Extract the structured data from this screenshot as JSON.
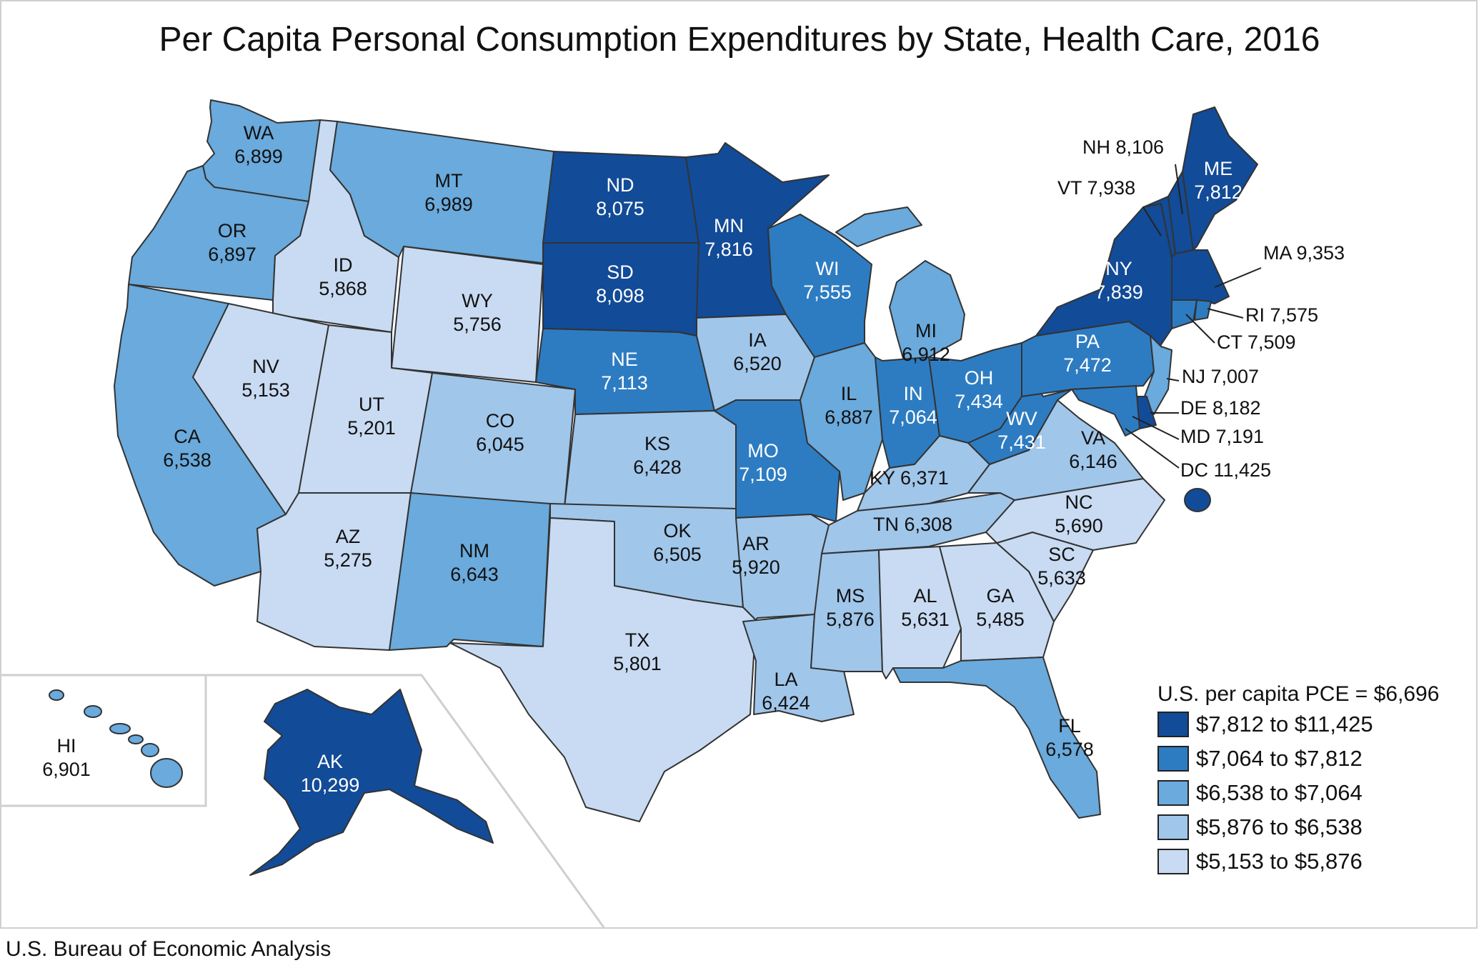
{
  "title": "Per Capita Personal Consumption Expenditures by State, Health Care, 2016",
  "source": "U.S. Bureau of Economic Analysis",
  "legend": {
    "title": "U.S. per capita PCE = $6,696",
    "classes": [
      {
        "label": "$7,812 to $11,425",
        "color": "#124b97"
      },
      {
        "label": "$7,064 to $7,812",
        "color": "#2d7cc2"
      },
      {
        "label": "$6,538 to $7,064",
        "color": "#6aaadc"
      },
      {
        "label": "$5,876 to $6,538",
        "color": "#a0c6ea"
      },
      {
        "label": "$5,153 to $5,876",
        "color": "#c8dbf2"
      }
    ]
  },
  "states": {
    "WA": {
      "abbr": "WA",
      "value": "6,899",
      "cls": 2
    },
    "OR": {
      "abbr": "OR",
      "value": "6,897",
      "cls": 2
    },
    "CA": {
      "abbr": "CA",
      "value": "6,538",
      "cls": 2
    },
    "ID": {
      "abbr": "ID",
      "value": "5,868",
      "cls": 4
    },
    "NV": {
      "abbr": "NV",
      "value": "5,153",
      "cls": 4
    },
    "MT": {
      "abbr": "MT",
      "value": "6,989",
      "cls": 2
    },
    "WY": {
      "abbr": "WY",
      "value": "5,756",
      "cls": 4
    },
    "UT": {
      "abbr": "UT",
      "value": "5,201",
      "cls": 4
    },
    "AZ": {
      "abbr": "AZ",
      "value": "5,275",
      "cls": 4
    },
    "CO": {
      "abbr": "CO",
      "value": "6,045",
      "cls": 3
    },
    "NM": {
      "abbr": "NM",
      "value": "6,643",
      "cls": 2
    },
    "ND": {
      "abbr": "ND",
      "value": "8,075",
      "cls": 0
    },
    "SD": {
      "abbr": "SD",
      "value": "8,098",
      "cls": 0
    },
    "NE": {
      "abbr": "NE",
      "value": "7,113",
      "cls": 1
    },
    "KS": {
      "abbr": "KS",
      "value": "6,428",
      "cls": 3
    },
    "OK": {
      "abbr": "OK",
      "value": "6,505",
      "cls": 3
    },
    "TX": {
      "abbr": "TX",
      "value": "5,801",
      "cls": 4
    },
    "MN": {
      "abbr": "MN",
      "value": "7,816",
      "cls": 0
    },
    "IA": {
      "abbr": "IA",
      "value": "6,520",
      "cls": 3
    },
    "MO": {
      "abbr": "MO",
      "value": "7,109",
      "cls": 1
    },
    "AR": {
      "abbr": "AR",
      "value": "5,920",
      "cls": 3
    },
    "LA": {
      "abbr": "LA",
      "value": "6,424",
      "cls": 3
    },
    "WI": {
      "abbr": "WI",
      "value": "7,555",
      "cls": 1
    },
    "IL": {
      "abbr": "IL",
      "value": "6,887",
      "cls": 2
    },
    "MI": {
      "abbr": "MI",
      "value": "6,912",
      "cls": 2
    },
    "IN": {
      "abbr": "IN",
      "value": "7,064",
      "cls": 1
    },
    "OH": {
      "abbr": "OH",
      "value": "7,434",
      "cls": 1
    },
    "KY": {
      "abbr": "KY",
      "value": "6,371",
      "cls": 3
    },
    "TN": {
      "abbr": "TN",
      "value": "6,308",
      "cls": 3
    },
    "MS": {
      "abbr": "MS",
      "value": "5,876",
      "cls": 3
    },
    "AL": {
      "abbr": "AL",
      "value": "5,631",
      "cls": 4
    },
    "GA": {
      "abbr": "GA",
      "value": "5,485",
      "cls": 4
    },
    "FL": {
      "abbr": "FL",
      "value": "6,578",
      "cls": 2
    },
    "SC": {
      "abbr": "SC",
      "value": "5,633",
      "cls": 4
    },
    "NC": {
      "abbr": "NC",
      "value": "5,690",
      "cls": 4
    },
    "VA": {
      "abbr": "VA",
      "value": "6,146",
      "cls": 3
    },
    "WV": {
      "abbr": "WV",
      "value": "7,431",
      "cls": 1
    },
    "PA": {
      "abbr": "PA",
      "value": "7,472",
      "cls": 1
    },
    "NY": {
      "abbr": "NY",
      "value": "7,839",
      "cls": 0
    },
    "VT": {
      "abbr": "VT",
      "value": "7,938",
      "cls": 0
    },
    "NH": {
      "abbr": "NH",
      "value": "8,106",
      "cls": 0
    },
    "ME": {
      "abbr": "ME",
      "value": "7,812",
      "cls": 0
    },
    "MA": {
      "abbr": "MA",
      "value": "9,353",
      "cls": 0
    },
    "RI": {
      "abbr": "RI",
      "value": "7,575",
      "cls": 1
    },
    "CT": {
      "abbr": "CT",
      "value": "7,509",
      "cls": 1
    },
    "NJ": {
      "abbr": "NJ",
      "value": "7,007",
      "cls": 2
    },
    "DE": {
      "abbr": "DE",
      "value": "8,182",
      "cls": 0
    },
    "MD": {
      "abbr": "MD",
      "value": "7,191",
      "cls": 1
    },
    "DC": {
      "abbr": "DC",
      "value": "11,425",
      "cls": 0
    },
    "AK": {
      "abbr": "AK",
      "value": "10,299",
      "cls": 0
    },
    "HI": {
      "abbr": "HI",
      "value": "6,901",
      "cls": 2
    }
  }
}
